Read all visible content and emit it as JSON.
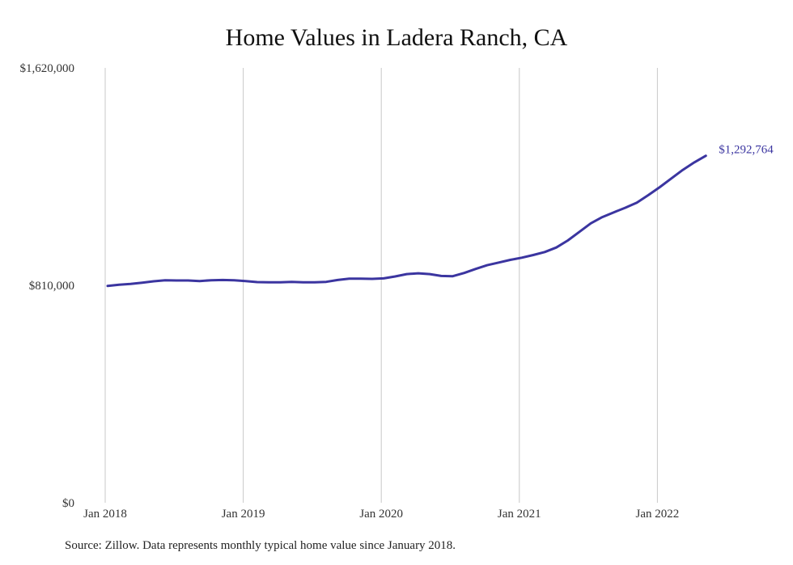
{
  "chart_data": {
    "type": "line",
    "title": "Home Values in Ladera Ranch, CA",
    "xlabel": "",
    "ylabel": "",
    "x_tick_labels": [
      "Jan 2018",
      "Jan 2019",
      "Jan 2020",
      "Jan 2021",
      "Jan 2022"
    ],
    "y_tick_labels": [
      "$1,620,000",
      "$810,000",
      "$0"
    ],
    "ylim": [
      0,
      1620000
    ],
    "grid": "vertical",
    "end_label": "$1,292,764",
    "series": [
      {
        "color": "#3b35a0",
        "x": [
          "2018-01",
          "2018-02",
          "2018-03",
          "2018-04",
          "2018-05",
          "2018-06",
          "2018-07",
          "2018-08",
          "2018-09",
          "2018-10",
          "2018-11",
          "2018-12",
          "2019-01",
          "2019-02",
          "2019-03",
          "2019-04",
          "2019-05",
          "2019-06",
          "2019-07",
          "2019-08",
          "2019-09",
          "2019-10",
          "2019-11",
          "2019-12",
          "2020-01",
          "2020-02",
          "2020-03",
          "2020-04",
          "2020-05",
          "2020-06",
          "2020-07",
          "2020-08",
          "2020-09",
          "2020-10",
          "2020-11",
          "2020-12",
          "2021-01",
          "2021-02",
          "2021-03",
          "2021-04",
          "2021-05",
          "2021-06",
          "2021-07",
          "2021-08",
          "2021-09",
          "2021-10",
          "2021-11",
          "2021-12",
          "2022-01",
          "2022-02",
          "2022-03",
          "2022-04",
          "2022-05"
        ],
        "values": [
          808000,
          812000,
          815000,
          820000,
          825000,
          829000,
          828000,
          828000,
          826000,
          829000,
          830000,
          829000,
          826000,
          822000,
          821000,
          821000,
          823000,
          821000,
          821000,
          823000,
          830000,
          835000,
          835000,
          834000,
          836000,
          843000,
          852000,
          855000,
          852000,
          845000,
          844000,
          856000,
          871000,
          885000,
          895000,
          905000,
          913000,
          923000,
          934000,
          951000,
          977000,
          1009000,
          1041000,
          1064000,
          1082000,
          1099000,
          1118000,
          1146000,
          1176000,
          1208000,
          1240000,
          1268000,
          1292764
        ]
      }
    ]
  },
  "source_note": "Source: Zillow. Data represents monthly typical home value since January 2018."
}
